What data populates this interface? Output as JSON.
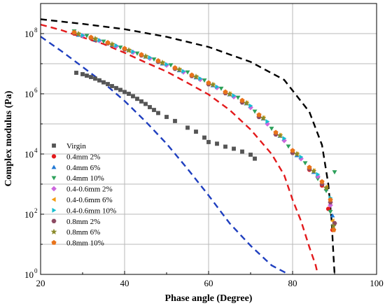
{
  "chart_data": {
    "type": "scatter",
    "title": "",
    "xlabel": "Phase angle (Degree)",
    "ylabel": "Complex modulus (Pa)",
    "x_scale": "linear",
    "y_scale": "log",
    "xlim": [
      20,
      100
    ],
    "ylim": [
      1,
      1000000000
    ],
    "x_ticks": [
      20,
      40,
      60,
      80,
      100
    ],
    "x_tick_labels": [
      "20",
      "40",
      "60",
      "80",
      "100"
    ],
    "y_ticks": [
      1,
      100,
      10000,
      1000000,
      100000000
    ],
    "y_tick_labels": [
      "10",
      "10",
      "10",
      "10",
      "10"
    ],
    "y_tick_exponents": [
      "0",
      "2",
      "4",
      "6",
      "8"
    ],
    "grid": true,
    "legend_position": "lower-left",
    "curves": [
      {
        "style": "dashed",
        "color": "#000000",
        "x": [
          20,
          30,
          40,
          50,
          60,
          70,
          78,
          84,
          87,
          88.5,
          89.3,
          89.7,
          90
        ],
        "y": [
          300000000,
          210000000,
          140000000,
          78000000,
          36000000,
          11500000,
          2900000,
          250000,
          20000,
          1000,
          60,
          5,
          1
        ]
      },
      {
        "style": "dashed",
        "color": "#e31a1c",
        "x": [
          20,
          25,
          30,
          35,
          40,
          45,
          50,
          55,
          60,
          65,
          70,
          75,
          78,
          80,
          82,
          84,
          85.5,
          86
        ],
        "y": [
          200000000,
          130000000,
          75000000,
          45000000,
          23000000,
          11000000,
          5500000,
          2300000,
          950000,
          290000,
          65000,
          10000,
          2000,
          300,
          60,
          8,
          2,
          1
        ]
      },
      {
        "style": "dashed",
        "color": "#1f3fbf",
        "x": [
          20,
          25,
          30,
          35,
          40,
          45,
          50,
          55,
          60,
          65,
          70,
          75,
          78,
          79
        ],
        "y": [
          80000000,
          26000000,
          7800000,
          2300000,
          580000,
          120000,
          22000,
          3200,
          420,
          50,
          9,
          2,
          1.2,
          1
        ]
      }
    ],
    "series": [
      {
        "name": "Virgin",
        "marker": "square",
        "color": "#555555",
        "x": [
          28.5,
          30,
          31,
          32,
          33,
          34,
          35,
          36,
          37,
          38,
          39,
          40,
          41,
          42,
          43,
          44,
          45,
          46,
          47,
          48,
          50,
          52,
          55,
          57,
          59,
          60,
          62,
          64,
          66,
          68,
          70,
          71
        ],
        "y": [
          5000000,
          4500000,
          4000000,
          3600000,
          3200000,
          2800000,
          2400000,
          2100000,
          1800000,
          1550000,
          1350000,
          1150000,
          1000000,
          830000,
          680000,
          560000,
          460000,
          360000,
          290000,
          230000,
          170000,
          125000,
          75000,
          55000,
          35000,
          25000,
          22000,
          17500,
          15000,
          12000,
          9500,
          7000
        ]
      },
      {
        "name": "0.4mm 2%",
        "marker": "circle",
        "color": "#e31a1c",
        "x": [
          28,
          32,
          36,
          40,
          44,
          48,
          52,
          56,
          60,
          64,
          68,
          72,
          76,
          80,
          84,
          87,
          88.5,
          89.5
        ],
        "y": [
          100000000,
          70000000,
          48000000,
          31000000,
          19000000,
          12000000,
          7000000,
          4000000,
          2100000,
          1100000,
          550000,
          180000,
          45000,
          11000,
          3000,
          900,
          150,
          30
        ]
      },
      {
        "name": "0.4mm 6%",
        "marker": "triangle-up",
        "color": "#1f77d4",
        "x": [
          29,
          33,
          37,
          41,
          45,
          49,
          53,
          57,
          61,
          65,
          69,
          73,
          77,
          81,
          85,
          88,
          89.5
        ],
        "y": [
          90000000,
          62000000,
          42000000,
          28000000,
          17000000,
          10000000,
          6000000,
          3500000,
          1900000,
          950000,
          480000,
          150000,
          40000,
          9000,
          2500,
          700,
          90
        ]
      },
      {
        "name": "0.4mm 10%",
        "marker": "triangle-down",
        "color": "#2ca05a",
        "x": [
          28,
          31,
          35,
          39,
          43,
          47,
          51,
          55,
          59,
          63,
          67,
          71,
          75,
          79,
          83,
          86,
          88,
          89,
          90
        ],
        "y": [
          120000000,
          85000000,
          55000000,
          35000000,
          22000000,
          14000000,
          9000000,
          5200000,
          2800000,
          1500000,
          750000,
          260000,
          70000,
          18000,
          5000,
          1500,
          600,
          120,
          2500
        ]
      },
      {
        "name": "0.4-0.6mm 2%",
        "marker": "diamond",
        "color": "#cc66dd",
        "x": [
          30,
          34,
          38,
          42,
          46,
          50,
          54,
          58,
          62,
          66,
          70,
          74,
          78,
          82,
          86,
          89
        ],
        "y": [
          85000000,
          58000000,
          38000000,
          24000000,
          15000000,
          9000000,
          5300000,
          3000000,
          1600000,
          800000,
          350000,
          100000,
          28000,
          7000,
          1800,
          200
        ]
      },
      {
        "name": "0.4-0.6mm 6%",
        "marker": "triangle-left",
        "color": "#f39c12",
        "x": [
          29,
          33,
          37,
          41,
          45,
          49,
          53,
          57,
          61,
          65,
          69,
          73,
          77,
          81,
          85,
          88,
          89.5
        ],
        "y": [
          95000000,
          65000000,
          43000000,
          27000000,
          17000000,
          10500000,
          6300000,
          3600000,
          2000000,
          1000000,
          500000,
          160000,
          42000,
          10000,
          2800,
          800,
          60
        ]
      },
      {
        "name": "0.4-0.6mm 10%",
        "marker": "triangle-right",
        "color": "#17becf",
        "x": [
          30,
          34,
          38,
          42,
          46,
          50,
          54,
          58,
          62,
          66,
          70,
          74,
          78,
          82,
          86,
          89
        ],
        "y": [
          88000000,
          60000000,
          40000000,
          25000000,
          16000000,
          9500000,
          5600000,
          3200000,
          1700000,
          870000,
          400000,
          120000,
          33000,
          8000,
          2100,
          350
        ]
      },
      {
        "name": "0.8mm 2%",
        "marker": "hexagon",
        "color": "#8c4a62",
        "x": [
          28,
          32,
          36,
          40,
          44,
          48,
          52,
          56,
          60,
          64,
          68,
          72,
          76,
          80,
          84,
          87,
          89,
          90
        ],
        "y": [
          105000000,
          72000000,
          48000000,
          30000000,
          19000000,
          11500000,
          6800000,
          3900000,
          2100000,
          1050000,
          520000,
          170000,
          45000,
          11000,
          3200,
          1000,
          250,
          50
        ]
      },
      {
        "name": "0.8mm 6%",
        "marker": "star",
        "color": "#8a8a2a",
        "x": [
          29,
          33,
          37,
          41,
          45,
          49,
          53,
          57,
          61,
          65,
          69,
          73,
          77,
          81,
          85,
          88,
          89.7
        ],
        "y": [
          98000000,
          67000000,
          44000000,
          28000000,
          17500000,
          10800000,
          6400000,
          3700000,
          2000000,
          980000,
          490000,
          155000,
          41000,
          10000,
          2700,
          750,
          40
        ]
      },
      {
        "name": "0.8mm 10%",
        "marker": "pentagon",
        "color": "#e8731a",
        "x": [
          28,
          32,
          36,
          40,
          44,
          48,
          52,
          56,
          60,
          64,
          68,
          72,
          76,
          80,
          84,
          87,
          89,
          89.8
        ],
        "y": [
          110000000,
          75000000,
          50000000,
          32000000,
          20000000,
          12500000,
          7300000,
          4200000,
          2300000,
          1150000,
          600000,
          200000,
          52000,
          13000,
          3600,
          1200,
          300,
          30
        ]
      }
    ]
  }
}
